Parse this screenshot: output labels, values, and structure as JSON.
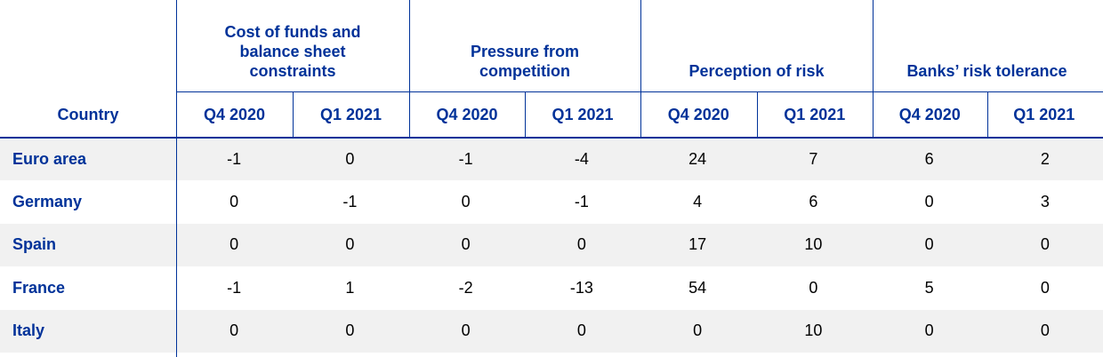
{
  "table": {
    "header": {
      "country": "Country",
      "groups": [
        {
          "title": "Cost of funds and balance sheet constraints",
          "periods": [
            "Q4 2020",
            "Q1 2021"
          ]
        },
        {
          "title": "Pressure from competition",
          "periods": [
            "Q4 2020",
            "Q1 2021"
          ]
        },
        {
          "title": "Perception of risk",
          "periods": [
            "Q4 2020",
            "Q1 2021"
          ]
        },
        {
          "title": "Banks’ risk tolerance",
          "periods": [
            "Q4 2020",
            "Q1 2021"
          ]
        }
      ]
    },
    "rows": [
      {
        "country": "Euro area",
        "values": [
          -1,
          0,
          -1,
          -4,
          24,
          7,
          6,
          2
        ]
      },
      {
        "country": "Germany",
        "values": [
          0,
          -1,
          0,
          -1,
          4,
          6,
          0,
          3
        ]
      },
      {
        "country": "Spain",
        "values": [
          0,
          0,
          0,
          0,
          17,
          10,
          0,
          0
        ]
      },
      {
        "country": "France",
        "values": [
          -1,
          1,
          -2,
          -13,
          54,
          0,
          5,
          0
        ]
      },
      {
        "country": "Italy",
        "values": [
          0,
          0,
          0,
          0,
          0,
          10,
          0,
          0
        ]
      }
    ]
  }
}
